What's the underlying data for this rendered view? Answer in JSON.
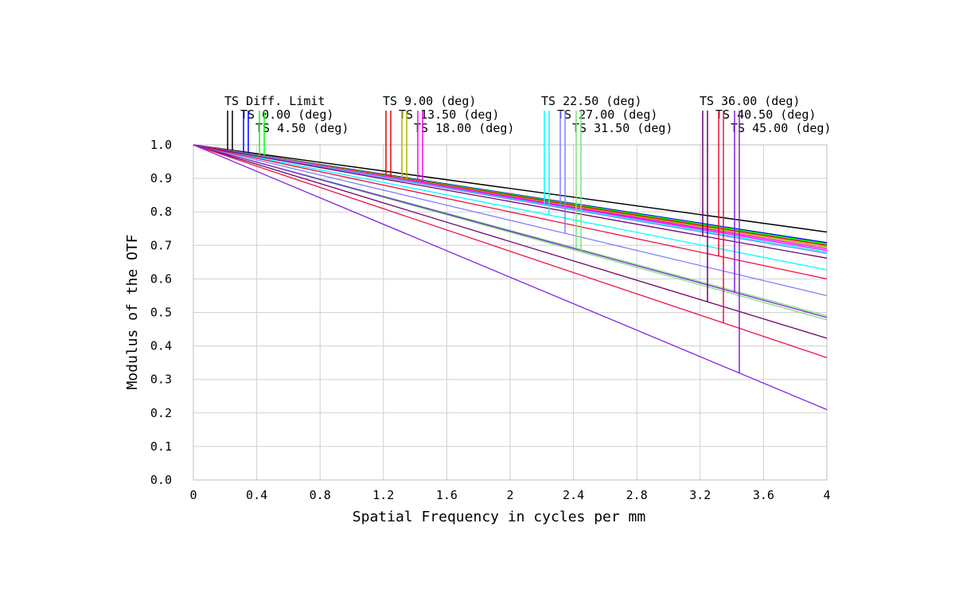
{
  "chart_data": {
    "type": "line",
    "xlabel": "Spatial Frequency in cycles per mm",
    "ylabel": "Modulus of the OTF",
    "xlim": [
      0,
      4
    ],
    "ylim": [
      0,
      1
    ],
    "x_ticks": [
      "0",
      "0.4",
      "0.8",
      "1.2",
      "1.6",
      "2",
      "2.4",
      "2.8",
      "3.2",
      "3.6",
      "4"
    ],
    "y_ticks": [
      "0.0",
      "0.1",
      "0.2",
      "0.3",
      "0.4",
      "0.5",
      "0.6",
      "0.7",
      "0.8",
      "0.9",
      "1.0"
    ],
    "grid": true,
    "legend_placement": "top",
    "x": [
      0,
      4
    ],
    "series": [
      {
        "name": "TS Diff. Limit",
        "color": "#000000",
        "tangential": [
          1.0,
          0.74
        ],
        "sagittal": [
          1.0,
          0.74
        ]
      },
      {
        "name": "TS 0.00 (deg)",
        "color": "#0000ff",
        "tangential": [
          1.0,
          0.708
        ],
        "sagittal": [
          1.0,
          0.708
        ]
      },
      {
        "name": "TS 4.50 (deg)",
        "color": "#00ff00",
        "tangential": [
          1.0,
          0.705
        ],
        "sagittal": [
          1.0,
          0.703
        ]
      },
      {
        "name": "TS 9.00 (deg)",
        "color": "#e00000",
        "tangential": [
          1.0,
          0.7
        ],
        "sagittal": [
          1.0,
          0.695
        ]
      },
      {
        "name": "TS 13.50 (deg)",
        "color": "#b0b000",
        "tangential": [
          1.0,
          0.695
        ],
        "sagittal": [
          1.0,
          0.69
        ]
      },
      {
        "name": "TS 18.00 (deg)",
        "color": "#ff00ff",
        "tangential": [
          1.0,
          0.69
        ],
        "sagittal": [
          1.0,
          0.685
        ]
      },
      {
        "name": "TS 22.50 (deg)",
        "color": "#00ffff",
        "tangential": [
          1.0,
          0.68
        ],
        "sagittal": [
          1.0,
          0.627
        ]
      },
      {
        "name": "TS 27.00 (deg)",
        "color": "#8080ff",
        "tangential": [
          1.0,
          0.676
        ],
        "sagittal": [
          1.0,
          0.55
        ]
      },
      {
        "name": "TS 31.50 (deg)",
        "color": "#80e080",
        "tangential": [
          1.0,
          0.49
        ],
        "sagittal": [
          1.0,
          0.478
        ]
      },
      {
        "name": "TS 36.00 (deg)",
        "color": "#700070",
        "tangential": [
          1.0,
          0.662
        ],
        "sagittal": [
          1.0,
          0.423
        ]
      },
      {
        "name": "TS 40.50 (deg)",
        "color": "#ee1040",
        "tangential": [
          1.0,
          0.6
        ],
        "sagittal": [
          1.0,
          0.365
        ]
      },
      {
        "name": "TS 45.00 (deg)",
        "color": "#8020e0",
        "tangential": [
          1.0,
          0.485
        ],
        "sagittal": [
          1.0,
          0.21
        ]
      }
    ]
  }
}
